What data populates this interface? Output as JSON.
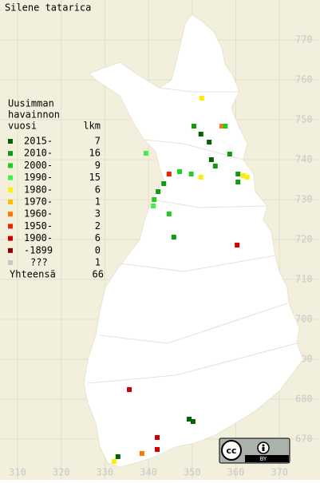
{
  "map": {
    "title": "Silene tatarica",
    "legend": {
      "heading": [
        "Uusimman",
        "havainnon"
      ],
      "col_heads": [
        "vuosi",
        "lkm"
      ],
      "entries": [
        {
          "label": "2015-",
          "count": 7,
          "color": "#006400"
        },
        {
          "label": "2010-",
          "count": 16,
          "color": "#119911"
        },
        {
          "label": "2000-",
          "count": 9,
          "color": "#22cc22"
        },
        {
          "label": "1990-",
          "count": 15,
          "color": "#44ee44"
        },
        {
          "label": "1980-",
          "count": 6,
          "color": "#ffee00"
        },
        {
          "label": "1970-",
          "count": 1,
          "color": "#ffbb00"
        },
        {
          "label": "1960-",
          "count": 3,
          "color": "#ff7700"
        },
        {
          "label": "1950-",
          "count": 2,
          "color": "#ee2200"
        },
        {
          "label": "1900-",
          "count": 6,
          "color": "#cc0000"
        },
        {
          "label": "-1899",
          "count": 0,
          "color": "#880000"
        },
        {
          "label": "???",
          "count": 1,
          "color": "#c8c8c8"
        }
      ],
      "total_label": "Yhteensä",
      "total": 66
    },
    "xticks": [
      310,
      320,
      330,
      340,
      350,
      360,
      370
    ],
    "yticks": [
      670,
      680,
      690,
      700,
      710,
      720,
      730,
      740,
      750,
      760,
      770
    ],
    "xlim": [
      306,
      379
    ],
    "ylim": [
      660,
      780
    ],
    "points": [
      {
        "x": 352.2,
        "y": 755.4,
        "class": 4
      },
      {
        "x": 350.4,
        "y": 748.4,
        "class": 1
      },
      {
        "x": 352.0,
        "y": 746.4,
        "class": 0
      },
      {
        "x": 353.9,
        "y": 744.4,
        "class": 0
      },
      {
        "x": 356.8,
        "y": 748.4,
        "class": 6
      },
      {
        "x": 357.6,
        "y": 748.4,
        "class": 2
      },
      {
        "x": 358.6,
        "y": 741.4,
        "class": 1
      },
      {
        "x": 360.5,
        "y": 736.4,
        "class": 1
      },
      {
        "x": 360.5,
        "y": 734.4,
        "class": 1
      },
      {
        "x": 361.7,
        "y": 736.0,
        "class": 4
      },
      {
        "x": 362.6,
        "y": 735.6,
        "class": 4
      },
      {
        "x": 354.4,
        "y": 740.0,
        "class": 0
      },
      {
        "x": 355.3,
        "y": 738.4,
        "class": 1
      },
      {
        "x": 352.0,
        "y": 735.6,
        "class": 4
      },
      {
        "x": 349.8,
        "y": 736.4,
        "class": 2
      },
      {
        "x": 347.1,
        "y": 737.0,
        "class": 2
      },
      {
        "x": 344.7,
        "y": 736.4,
        "class": 7
      },
      {
        "x": 343.5,
        "y": 734.0,
        "class": 1
      },
      {
        "x": 342.2,
        "y": 732.0,
        "class": 1
      },
      {
        "x": 341.3,
        "y": 730.0,
        "class": 2
      },
      {
        "x": 341.1,
        "y": 728.4,
        "class": 3
      },
      {
        "x": 339.4,
        "y": 741.6,
        "class": 3
      },
      {
        "x": 344.7,
        "y": 726.4,
        "class": 2
      },
      {
        "x": 345.8,
        "y": 720.6,
        "class": 1
      },
      {
        "x": 360.3,
        "y": 718.6,
        "class": 8
      },
      {
        "x": 335.6,
        "y": 682.4,
        "class": 8
      },
      {
        "x": 349.3,
        "y": 675.0,
        "class": 0
      },
      {
        "x": 350.2,
        "y": 674.4,
        "class": 0
      },
      {
        "x": 342.0,
        "y": 670.4,
        "class": 8
      },
      {
        "x": 342.0,
        "y": 667.4,
        "class": 8
      },
      {
        "x": 338.5,
        "y": 666.4,
        "class": 6
      },
      {
        "x": 333.0,
        "y": 665.6,
        "class": 0
      },
      {
        "x": 332.1,
        "y": 664.4,
        "class": 4
      }
    ],
    "license": [
      "cc",
      "BY"
    ]
  }
}
